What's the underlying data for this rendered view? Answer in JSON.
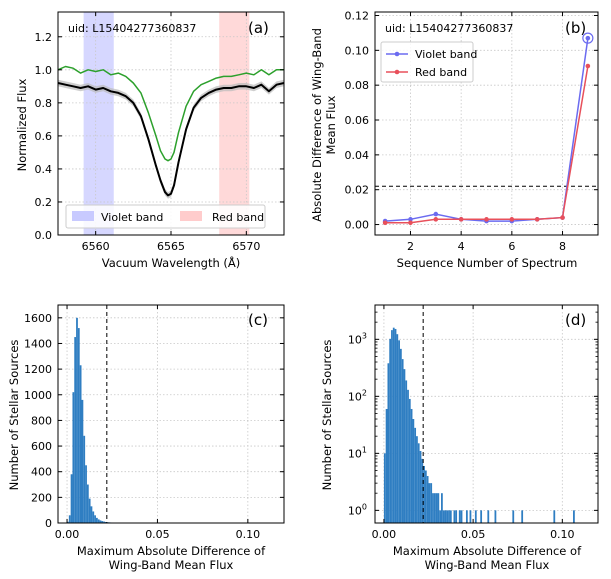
{
  "chart_data": [
    {
      "id": "a",
      "type": "line",
      "panel_label": "(a)",
      "uid_text": "uid: L15404277360837",
      "xlabel": "Vacuum Wavelength (Å)",
      "ylabel": "Normalized Flux",
      "xlim": [
        6557.5,
        6572.5
      ],
      "ylim": [
        0.0,
        1.35
      ],
      "xticks": [
        6560,
        6565,
        6570
      ],
      "yticks": [
        0.0,
        0.2,
        0.4,
        0.6,
        0.8,
        1.0,
        1.2
      ],
      "ytick_labels": [
        "0.0",
        "0.2",
        "0.4",
        "0.6",
        "0.8",
        "1.0",
        "1.2"
      ],
      "bands": [
        {
          "name": "Violet band",
          "x0": 6559.2,
          "x1": 6561.2,
          "color": "#c8caff"
        },
        {
          "name": "Red band",
          "x0": 6568.2,
          "x1": 6570.2,
          "color": "#ffcccc"
        }
      ],
      "series": [
        {
          "name": "Green spectrum",
          "color": "#2ca02c",
          "x": [
            6557.5,
            6558,
            6558.5,
            6559,
            6559.5,
            6560,
            6560.5,
            6561,
            6561.5,
            6562,
            6562.5,
            6563,
            6563.5,
            6564,
            6564.3,
            6564.6,
            6564.8,
            6565,
            6565.2,
            6565.5,
            6566,
            6566.5,
            6567,
            6567.5,
            6568,
            6568.5,
            6569,
            6569.5,
            6570,
            6570.5,
            6571,
            6571.5,
            6572,
            6572.5
          ],
          "y": [
            1.0,
            1.02,
            1.01,
            0.98,
            1.0,
            0.99,
            1.0,
            0.97,
            0.98,
            0.96,
            0.92,
            0.86,
            0.74,
            0.6,
            0.51,
            0.46,
            0.45,
            0.46,
            0.5,
            0.62,
            0.78,
            0.87,
            0.91,
            0.93,
            0.95,
            0.96,
            0.96,
            0.97,
            0.98,
            0.97,
            1.0,
            0.97,
            1.0,
            1.0
          ]
        },
        {
          "name": "Black spectrum",
          "color": "#000000",
          "x": [
            6557.5,
            6558,
            6558.5,
            6559,
            6559.5,
            6560,
            6560.5,
            6561,
            6561.5,
            6562,
            6562.5,
            6563,
            6563.5,
            6564,
            6564.3,
            6564.6,
            6564.8,
            6565,
            6565.2,
            6565.5,
            6566,
            6566.5,
            6567,
            6567.5,
            6568,
            6568.5,
            6569,
            6569.5,
            6570,
            6570.5,
            6571,
            6571.5,
            6572,
            6572.5
          ],
          "y": [
            0.92,
            0.91,
            0.9,
            0.89,
            0.9,
            0.88,
            0.89,
            0.87,
            0.86,
            0.84,
            0.8,
            0.72,
            0.58,
            0.42,
            0.33,
            0.26,
            0.24,
            0.25,
            0.3,
            0.44,
            0.64,
            0.77,
            0.83,
            0.86,
            0.88,
            0.89,
            0.89,
            0.9,
            0.9,
            0.89,
            0.91,
            0.87,
            0.91,
            0.92
          ]
        }
      ],
      "legend": [
        "Violet band",
        "Red band"
      ]
    },
    {
      "id": "b",
      "type": "line",
      "panel_label": "(b)",
      "uid_text": "uid: L15404277360837",
      "xlabel": "Sequence Number of Spectrum",
      "ylabel_lines": [
        "Absolute Difference of Wing-Band",
        "Mean Flux"
      ],
      "xlim": [
        0.6,
        9.4
      ],
      "ylim": [
        -0.006,
        0.122
      ],
      "xticks": [
        2,
        4,
        6,
        8
      ],
      "yticks": [
        0.0,
        0.02,
        0.04,
        0.06,
        0.08,
        0.1,
        0.12
      ],
      "ytick_labels": [
        "0.00",
        "0.02",
        "0.04",
        "0.06",
        "0.08",
        "0.10",
        "0.12"
      ],
      "threshold": 0.022,
      "series": [
        {
          "name": "Violet band",
          "color": "#6b6bf0",
          "x": [
            1,
            2,
            3,
            4,
            5,
            6,
            7,
            8,
            9
          ],
          "y": [
            0.002,
            0.003,
            0.006,
            0.003,
            0.002,
            0.002,
            0.003,
            0.004,
            0.107
          ]
        },
        {
          "name": "Red band",
          "color": "#e8505b",
          "x": [
            1,
            2,
            3,
            4,
            5,
            6,
            7,
            8,
            9
          ],
          "y": [
            0.001,
            0.001,
            0.003,
            0.003,
            0.003,
            0.003,
            0.003,
            0.004,
            0.091
          ]
        }
      ],
      "highlight_point": {
        "x": 9,
        "y": 0.107
      },
      "legend": [
        "Violet band",
        "Red band"
      ]
    },
    {
      "id": "c",
      "type": "bar",
      "panel_label": "(c)",
      "xlabel_lines": [
        "Maximum Absolute Difference of",
        "Wing-Band Mean Flux"
      ],
      "ylabel": "Number of Stellar Sources",
      "xlim": [
        -0.005,
        0.12
      ],
      "ylim": [
        0,
        1700
      ],
      "xticks": [
        0.0,
        0.05,
        0.1
      ],
      "xtick_labels": [
        "0.00",
        "0.05",
        "0.10"
      ],
      "yticks": [
        0,
        200,
        400,
        600,
        800,
        1000,
        1200,
        1400,
        1600
      ],
      "threshold": 0.022,
      "bin_width": 0.001,
      "bin_start": 0.0,
      "counts": [
        10,
        60,
        380,
        1020,
        1450,
        1600,
        1520,
        1230,
        960,
        680,
        450,
        300,
        190,
        130,
        90,
        60,
        40,
        28,
        20,
        15,
        11,
        8,
        6,
        5,
        4,
        3,
        3,
        2,
        2,
        2,
        2,
        1,
        2,
        1,
        1,
        1,
        1,
        1,
        0,
        1,
        1,
        0,
        1,
        1,
        0,
        0,
        1,
        0,
        1,
        0,
        0,
        1,
        0,
        0,
        1,
        0,
        0,
        0,
        1,
        0,
        0,
        0,
        1,
        0,
        0,
        0,
        0,
        0,
        0,
        0,
        0,
        0,
        1,
        0,
        0,
        0,
        0,
        1,
        0,
        0,
        0,
        0,
        0,
        0,
        0,
        0,
        0,
        0,
        0,
        0,
        0,
        0,
        0,
        0,
        0,
        1,
        0,
        0,
        0,
        0,
        0,
        0,
        0,
        0,
        0,
        0,
        1,
        0,
        0,
        0,
        0
      ],
      "bar_color": "#2f7ec2"
    },
    {
      "id": "d",
      "type": "bar",
      "panel_label": "(d)",
      "xlabel_lines": [
        "Maximum Absolute Difference of",
        "Wing-Band Mean Flux"
      ],
      "ylabel": "Number of Stellar Sources",
      "yscale": "log",
      "xlim": [
        -0.005,
        0.12
      ],
      "ylim": [
        0.6,
        4000
      ],
      "xticks": [
        0.0,
        0.05,
        0.1
      ],
      "xtick_labels": [
        "0.00",
        "0.05",
        "0.10"
      ],
      "yticks": [
        1,
        10,
        100,
        1000
      ],
      "ytick_exponents": [
        "0",
        "1",
        "2",
        "3"
      ],
      "threshold": 0.022,
      "bin_width": 0.001,
      "bin_start": 0.0,
      "counts": [
        10,
        60,
        380,
        1020,
        1450,
        1600,
        1520,
        1230,
        960,
        680,
        450,
        300,
        190,
        130,
        90,
        60,
        40,
        28,
        20,
        15,
        11,
        8,
        6,
        5,
        4,
        3,
        3,
        2,
        2,
        2,
        2,
        1,
        2,
        1,
        1,
        1,
        1,
        1,
        0,
        1,
        1,
        0,
        1,
        1,
        0,
        0,
        1,
        0,
        1,
        0,
        0,
        1,
        0,
        0,
        1,
        0,
        0,
        0,
        1,
        0,
        0,
        0,
        1,
        0,
        0,
        0,
        0,
        0,
        0,
        0,
        0,
        0,
        1,
        0,
        0,
        0,
        0,
        1,
        0,
        0,
        0,
        0,
        0,
        0,
        0,
        0,
        0,
        0,
        0,
        0,
        0,
        0,
        0,
        0,
        0,
        1,
        0,
        0,
        0,
        0,
        0,
        0,
        0,
        0,
        0,
        0,
        1,
        0,
        0,
        0,
        0
      ],
      "bar_color": "#2f7ec2"
    }
  ]
}
